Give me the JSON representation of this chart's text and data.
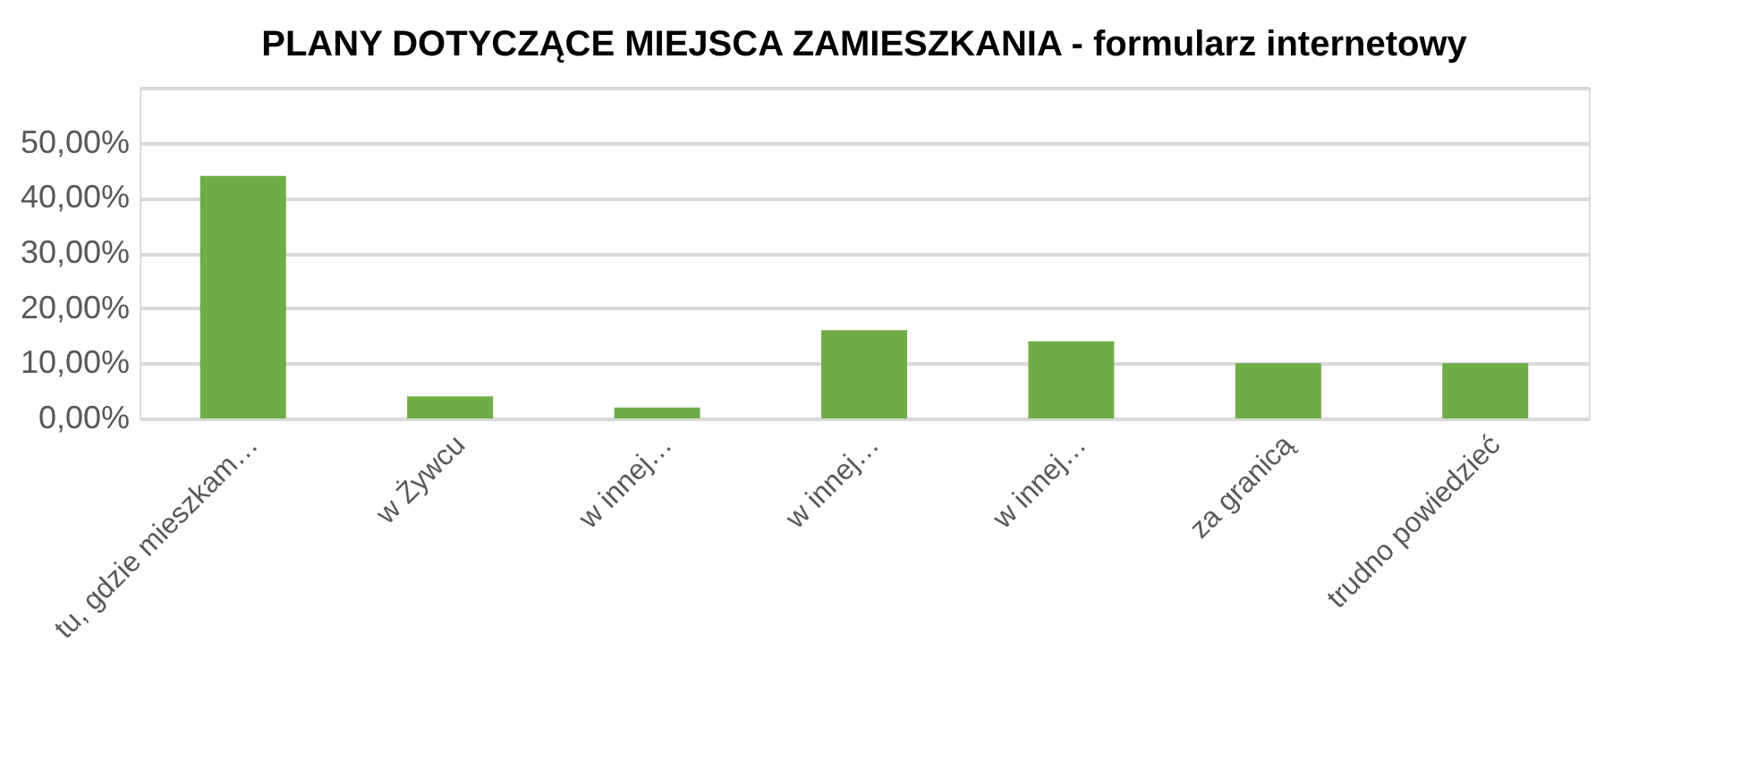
{
  "chart_data": {
    "type": "bar",
    "title": "PLANY DOTYCZĄCE MIEJSCA ZAMIESZKANIA - formularz internetowy",
    "categories": [
      "tu, gdzie mieszkam…",
      "w Żywcu",
      "w innej…",
      "w innej…",
      "w innej…",
      "za granicą",
      "trudno powiedzieć"
    ],
    "values": [
      44,
      4,
      2,
      16,
      14,
      10,
      10
    ],
    "color": "#70ad47",
    "ylim": [
      0,
      60
    ],
    "yticks": [
      {
        "value": 0,
        "label": "0,00%"
      },
      {
        "value": 10,
        "label": "10,00%"
      },
      {
        "value": 20,
        "label": "20,00%"
      },
      {
        "value": 30,
        "label": "30,00%"
      },
      {
        "value": 40,
        "label": "40,00%"
      },
      {
        "value": 50,
        "label": "50,00%"
      },
      {
        "value": 60,
        "label": null
      }
    ],
    "grid": "y"
  }
}
